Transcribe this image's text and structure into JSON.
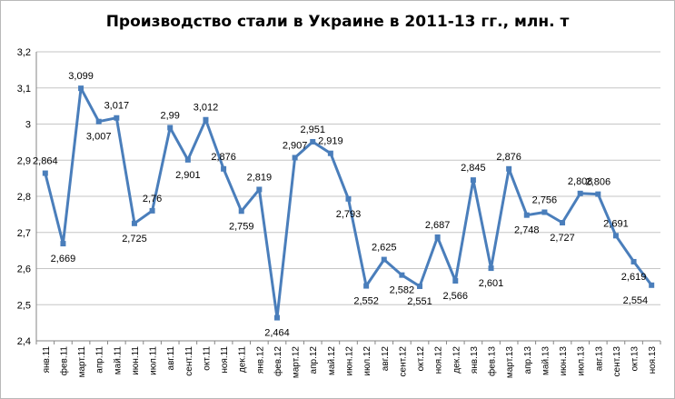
{
  "chart_data": {
    "type": "line",
    "title": "Производство стали в Украине в 2011-13 гг., млн. т",
    "xlabel": "",
    "ylabel": "",
    "ylim": [
      2.4,
      3.2
    ],
    "yticks": [
      "2,4",
      "2,5",
      "2,6",
      "2,7",
      "2,8",
      "2,9",
      "3",
      "3,1",
      "3,2"
    ],
    "grid": true,
    "legend": "none",
    "line_color": "#4a7ebb",
    "categories": [
      "янв.11",
      "фев.11",
      "март.11",
      "апр.11",
      "май.11",
      "июн.11",
      "июл.11",
      "авг.11",
      "сент.11",
      "окт.11",
      "ноя.11",
      "дек.11",
      "янв.12",
      "фев.12",
      "март.12",
      "апр.12",
      "май.12",
      "июн.12",
      "июл.12",
      "авг.12",
      "сент.12",
      "окт.12",
      "ноя.12",
      "дек.12",
      "янв.13",
      "фев.13",
      "март.13",
      "апр.13",
      "май.13",
      "июн.13",
      "июл.13",
      "авг.13",
      "сент.13",
      "окт.13",
      "ноя.13"
    ],
    "values": [
      2.864,
      2.669,
      3.099,
      3.007,
      3.017,
      2.725,
      2.76,
      2.99,
      2.901,
      3.012,
      2.876,
      2.759,
      2.819,
      2.464,
      2.907,
      2.951,
      2.919,
      2.793,
      2.552,
      2.625,
      2.582,
      2.551,
      2.687,
      2.566,
      2.845,
      2.601,
      2.876,
      2.748,
      2.756,
      2.727,
      2.808,
      2.806,
      2.691,
      2.619,
      2.554
    ],
    "data_labels": [
      "2,864",
      "2,669",
      "3,099",
      "3,007",
      "3,017",
      "2,725",
      "2,76",
      "2,99",
      "2,901",
      "3,012",
      "2,876",
      "2,759",
      "2,819",
      "2,464",
      "2,907",
      "2,951",
      "2,919",
      "2,793",
      "2,552",
      "2,625",
      "2,582",
      "2,551",
      "2,687",
      "2,566",
      "2,845",
      "2,601",
      "2,876",
      "2,748",
      "2,756",
      "2,727",
      "2,808",
      "2,806",
      "2,691",
      "2,619",
      "2,554"
    ]
  }
}
